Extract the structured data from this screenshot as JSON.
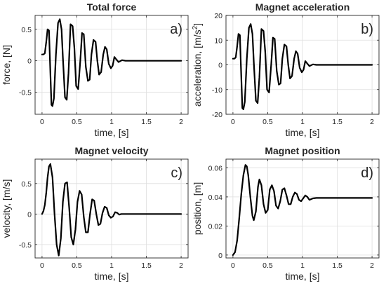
{
  "chart_data": [
    {
      "panel": "a)",
      "type": "line",
      "title": "Total force",
      "xlabel": "time, [s]",
      "ylabel": "force, [N]",
      "xlim": [
        -0.1,
        2.1
      ],
      "ylim": [
        -0.85,
        0.72
      ],
      "xticks": [
        0,
        0.5,
        1,
        1.5,
        2
      ],
      "xtick_labels": [
        "0",
        "0.5",
        "1",
        "1.5",
        "2"
      ],
      "yticks": [
        -0.5,
        0,
        0.5
      ],
      "ytick_labels": [
        "-0.5",
        "0",
        "0.5"
      ],
      "grid": true,
      "series": [
        {
          "color": "#000000",
          "x": [
            0,
            0.02,
            0.04,
            0.06,
            0.08,
            0.1,
            0.12,
            0.135,
            0.15,
            0.17,
            0.2,
            0.23,
            0.255,
            0.28,
            0.3,
            0.33,
            0.355,
            0.38,
            0.41,
            0.44,
            0.465,
            0.49,
            0.52,
            0.55,
            0.575,
            0.6,
            0.63,
            0.66,
            0.685,
            0.71,
            0.74,
            0.77,
            0.795,
            0.82,
            0.85,
            0.88,
            0.905,
            0.93,
            0.96,
            0.99,
            1.015,
            1.04,
            1.07,
            1.1,
            1.15,
            1.2,
            1.3,
            1.5,
            1.7,
            2.0
          ],
          "y": [
            0.1,
            0.1,
            0.12,
            0.3,
            0.5,
            0.48,
            -0.2,
            -0.7,
            -0.72,
            -0.6,
            0.1,
            0.6,
            0.66,
            0.5,
            0.05,
            -0.58,
            -0.62,
            -0.2,
            0.58,
            0.55,
            0.2,
            -0.4,
            -0.45,
            0.0,
            0.44,
            0.42,
            -0.1,
            -0.32,
            -0.3,
            0.1,
            0.33,
            0.3,
            0.0,
            -0.22,
            -0.18,
            0.1,
            0.22,
            0.18,
            -0.05,
            -0.12,
            -0.08,
            0.06,
            0.02,
            -0.02,
            0.01,
            0.0,
            0.0,
            0.0,
            0.0,
            0.0
          ]
        }
      ]
    },
    {
      "panel": "b)",
      "type": "line",
      "title": "Magnet acceleration",
      "xlabel": "time, [s]",
      "ylabel": "acceleration, [m/s²]",
      "xlim": [
        -0.1,
        2.1
      ],
      "ylim": [
        -20,
        20
      ],
      "xticks": [
        0,
        0.5,
        1,
        1.5,
        2
      ],
      "xtick_labels": [
        "0",
        "0.5",
        "1",
        "1.5",
        "2"
      ],
      "yticks": [
        -20,
        -10,
        0,
        10,
        20
      ],
      "ytick_labels": [
        "-20",
        "-10",
        "0",
        "10",
        "20"
      ],
      "grid": true,
      "series": [
        {
          "color": "#000000",
          "x": [
            0,
            0.02,
            0.04,
            0.06,
            0.08,
            0.1,
            0.12,
            0.135,
            0.15,
            0.17,
            0.2,
            0.23,
            0.255,
            0.28,
            0.3,
            0.33,
            0.355,
            0.38,
            0.41,
            0.44,
            0.465,
            0.49,
            0.52,
            0.55,
            0.575,
            0.6,
            0.63,
            0.66,
            0.685,
            0.71,
            0.74,
            0.77,
            0.795,
            0.82,
            0.85,
            0.88,
            0.905,
            0.93,
            0.96,
            0.99,
            1.015,
            1.04,
            1.07,
            1.1,
            1.15,
            1.2,
            1.3,
            1.5,
            1.7,
            2.0
          ],
          "y": [
            2.5,
            2.5,
            3.0,
            7.5,
            12.5,
            12.0,
            -5.0,
            -17.5,
            -18.0,
            -15.0,
            2.5,
            15.0,
            16.5,
            12.5,
            1.2,
            -14.5,
            -15.5,
            -5.0,
            14.5,
            13.7,
            5.0,
            -10.0,
            -11.2,
            0.0,
            11.0,
            10.5,
            -2.5,
            -8.0,
            -7.5,
            2.5,
            8.2,
            7.5,
            0.0,
            -5.5,
            -4.5,
            2.5,
            5.5,
            4.5,
            -1.2,
            -3.0,
            -2.0,
            1.5,
            0.5,
            -0.5,
            0.2,
            0.0,
            0.0,
            0.0,
            0.0,
            0.0
          ]
        }
      ]
    },
    {
      "panel": "c)",
      "type": "line",
      "title": "Magnet velocity",
      "xlabel": "time, [s]",
      "ylabel": "velocity, [m/s]",
      "xlim": [
        -0.1,
        2.1
      ],
      "ylim": [
        -0.72,
        0.9
      ],
      "xticks": [
        0,
        0.5,
        1,
        1.5,
        2
      ],
      "xtick_labels": [
        "0",
        "0.5",
        "1",
        "1.5",
        "2"
      ],
      "yticks": [
        -0.5,
        0,
        0.5
      ],
      "ytick_labels": [
        "-0.5",
        "0",
        "0.5"
      ],
      "grid": true,
      "series": [
        {
          "color": "#000000",
          "x": [
            0,
            0.02,
            0.04,
            0.06,
            0.08,
            0.1,
            0.12,
            0.15,
            0.18,
            0.21,
            0.24,
            0.27,
            0.3,
            0.33,
            0.36,
            0.39,
            0.42,
            0.45,
            0.48,
            0.51,
            0.54,
            0.57,
            0.6,
            0.63,
            0.66,
            0.69,
            0.72,
            0.75,
            0.78,
            0.81,
            0.84,
            0.87,
            0.9,
            0.93,
            0.96,
            0.99,
            1.02,
            1.05,
            1.08,
            1.11,
            1.14,
            1.2,
            1.3,
            1.5,
            1.7,
            2.0
          ],
          "y": [
            0.0,
            0.05,
            0.15,
            0.35,
            0.6,
            0.78,
            0.82,
            0.6,
            0.0,
            -0.5,
            -0.68,
            -0.4,
            0.2,
            0.5,
            0.52,
            0.1,
            -0.38,
            -0.5,
            -0.25,
            0.2,
            0.38,
            0.32,
            -0.05,
            -0.3,
            -0.3,
            0.0,
            0.24,
            0.22,
            0.0,
            -0.18,
            -0.16,
            0.02,
            0.12,
            0.1,
            -0.02,
            -0.06,
            -0.04,
            0.03,
            0.02,
            -0.01,
            0.0,
            0.0,
            0.0,
            0.0,
            0.0,
            0.0
          ]
        }
      ]
    },
    {
      "panel": "d)",
      "type": "line",
      "title": "Magnet position",
      "xlabel": "time, [s]",
      "ylabel": "position, [m]",
      "xlim": [
        -0.1,
        2.1
      ],
      "ylim": [
        -0.002,
        0.066
      ],
      "xticks": [
        0,
        0.5,
        1,
        1.5,
        2
      ],
      "xtick_labels": [
        "0",
        "0.5",
        "1",
        "1.5",
        "2"
      ],
      "yticks": [
        0,
        0.02,
        0.04,
        0.06
      ],
      "ytick_labels": [
        "0",
        "0.02",
        "0.04",
        "0.06"
      ],
      "grid": true,
      "series": [
        {
          "color": "#000000",
          "x": [
            0,
            0.03,
            0.06,
            0.09,
            0.12,
            0.15,
            0.18,
            0.2,
            0.22,
            0.25,
            0.28,
            0.3,
            0.33,
            0.36,
            0.38,
            0.41,
            0.44,
            0.47,
            0.5,
            0.53,
            0.56,
            0.59,
            0.62,
            0.65,
            0.68,
            0.71,
            0.74,
            0.77,
            0.8,
            0.83,
            0.86,
            0.89,
            0.92,
            0.95,
            0.98,
            1.01,
            1.04,
            1.07,
            1.1,
            1.15,
            1.2,
            1.3,
            1.5,
            1.7,
            2.0
          ],
          "y": [
            0.0,
            0.002,
            0.01,
            0.025,
            0.042,
            0.055,
            0.062,
            0.061,
            0.055,
            0.04,
            0.027,
            0.024,
            0.03,
            0.047,
            0.052,
            0.048,
            0.035,
            0.029,
            0.031,
            0.045,
            0.048,
            0.044,
            0.034,
            0.032,
            0.037,
            0.045,
            0.046,
            0.041,
            0.035,
            0.035,
            0.04,
            0.043,
            0.042,
            0.038,
            0.037,
            0.039,
            0.041,
            0.04,
            0.038,
            0.039,
            0.0393,
            0.0393,
            0.0393,
            0.0393,
            0.0393
          ]
        }
      ]
    }
  ]
}
